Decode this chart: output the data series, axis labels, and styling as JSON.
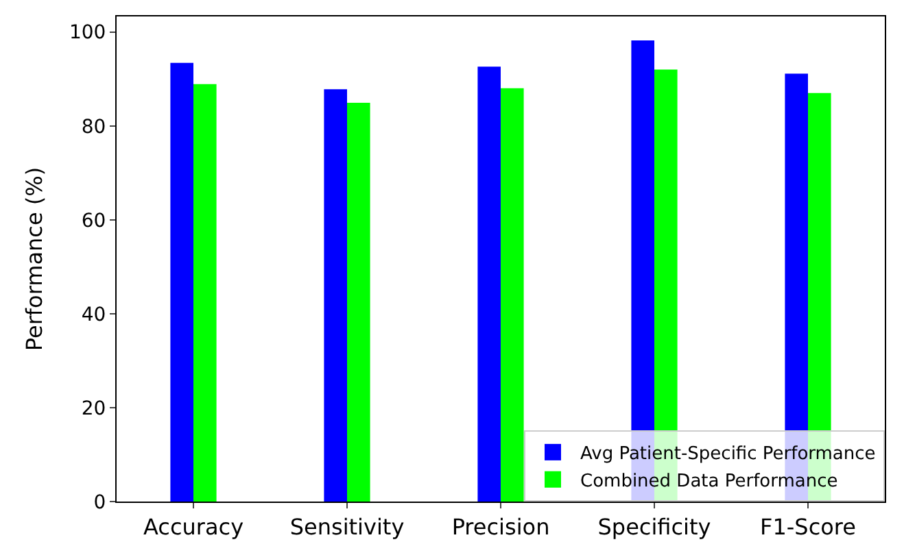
{
  "chart_data": {
    "type": "bar",
    "ylabel": "Performance (%)",
    "categories": [
      "Accuracy",
      "Sensitivity",
      "Precision",
      "Specificity",
      "F1-Score"
    ],
    "series": [
      {
        "name": "Avg Patient-Specific Performance",
        "color": "#0000ff",
        "values": [
          93.4,
          87.8,
          92.6,
          98.2,
          91.1
        ]
      },
      {
        "name": "Combined Data Performance",
        "color": "#00ff00",
        "values": [
          88.9,
          84.9,
          88.0,
          92.0,
          87.0
        ]
      }
    ],
    "ylim": [
      0,
      103.3
    ],
    "yticks": [
      0,
      20,
      40,
      60,
      80,
      100
    ],
    "legend": "bottom right"
  }
}
